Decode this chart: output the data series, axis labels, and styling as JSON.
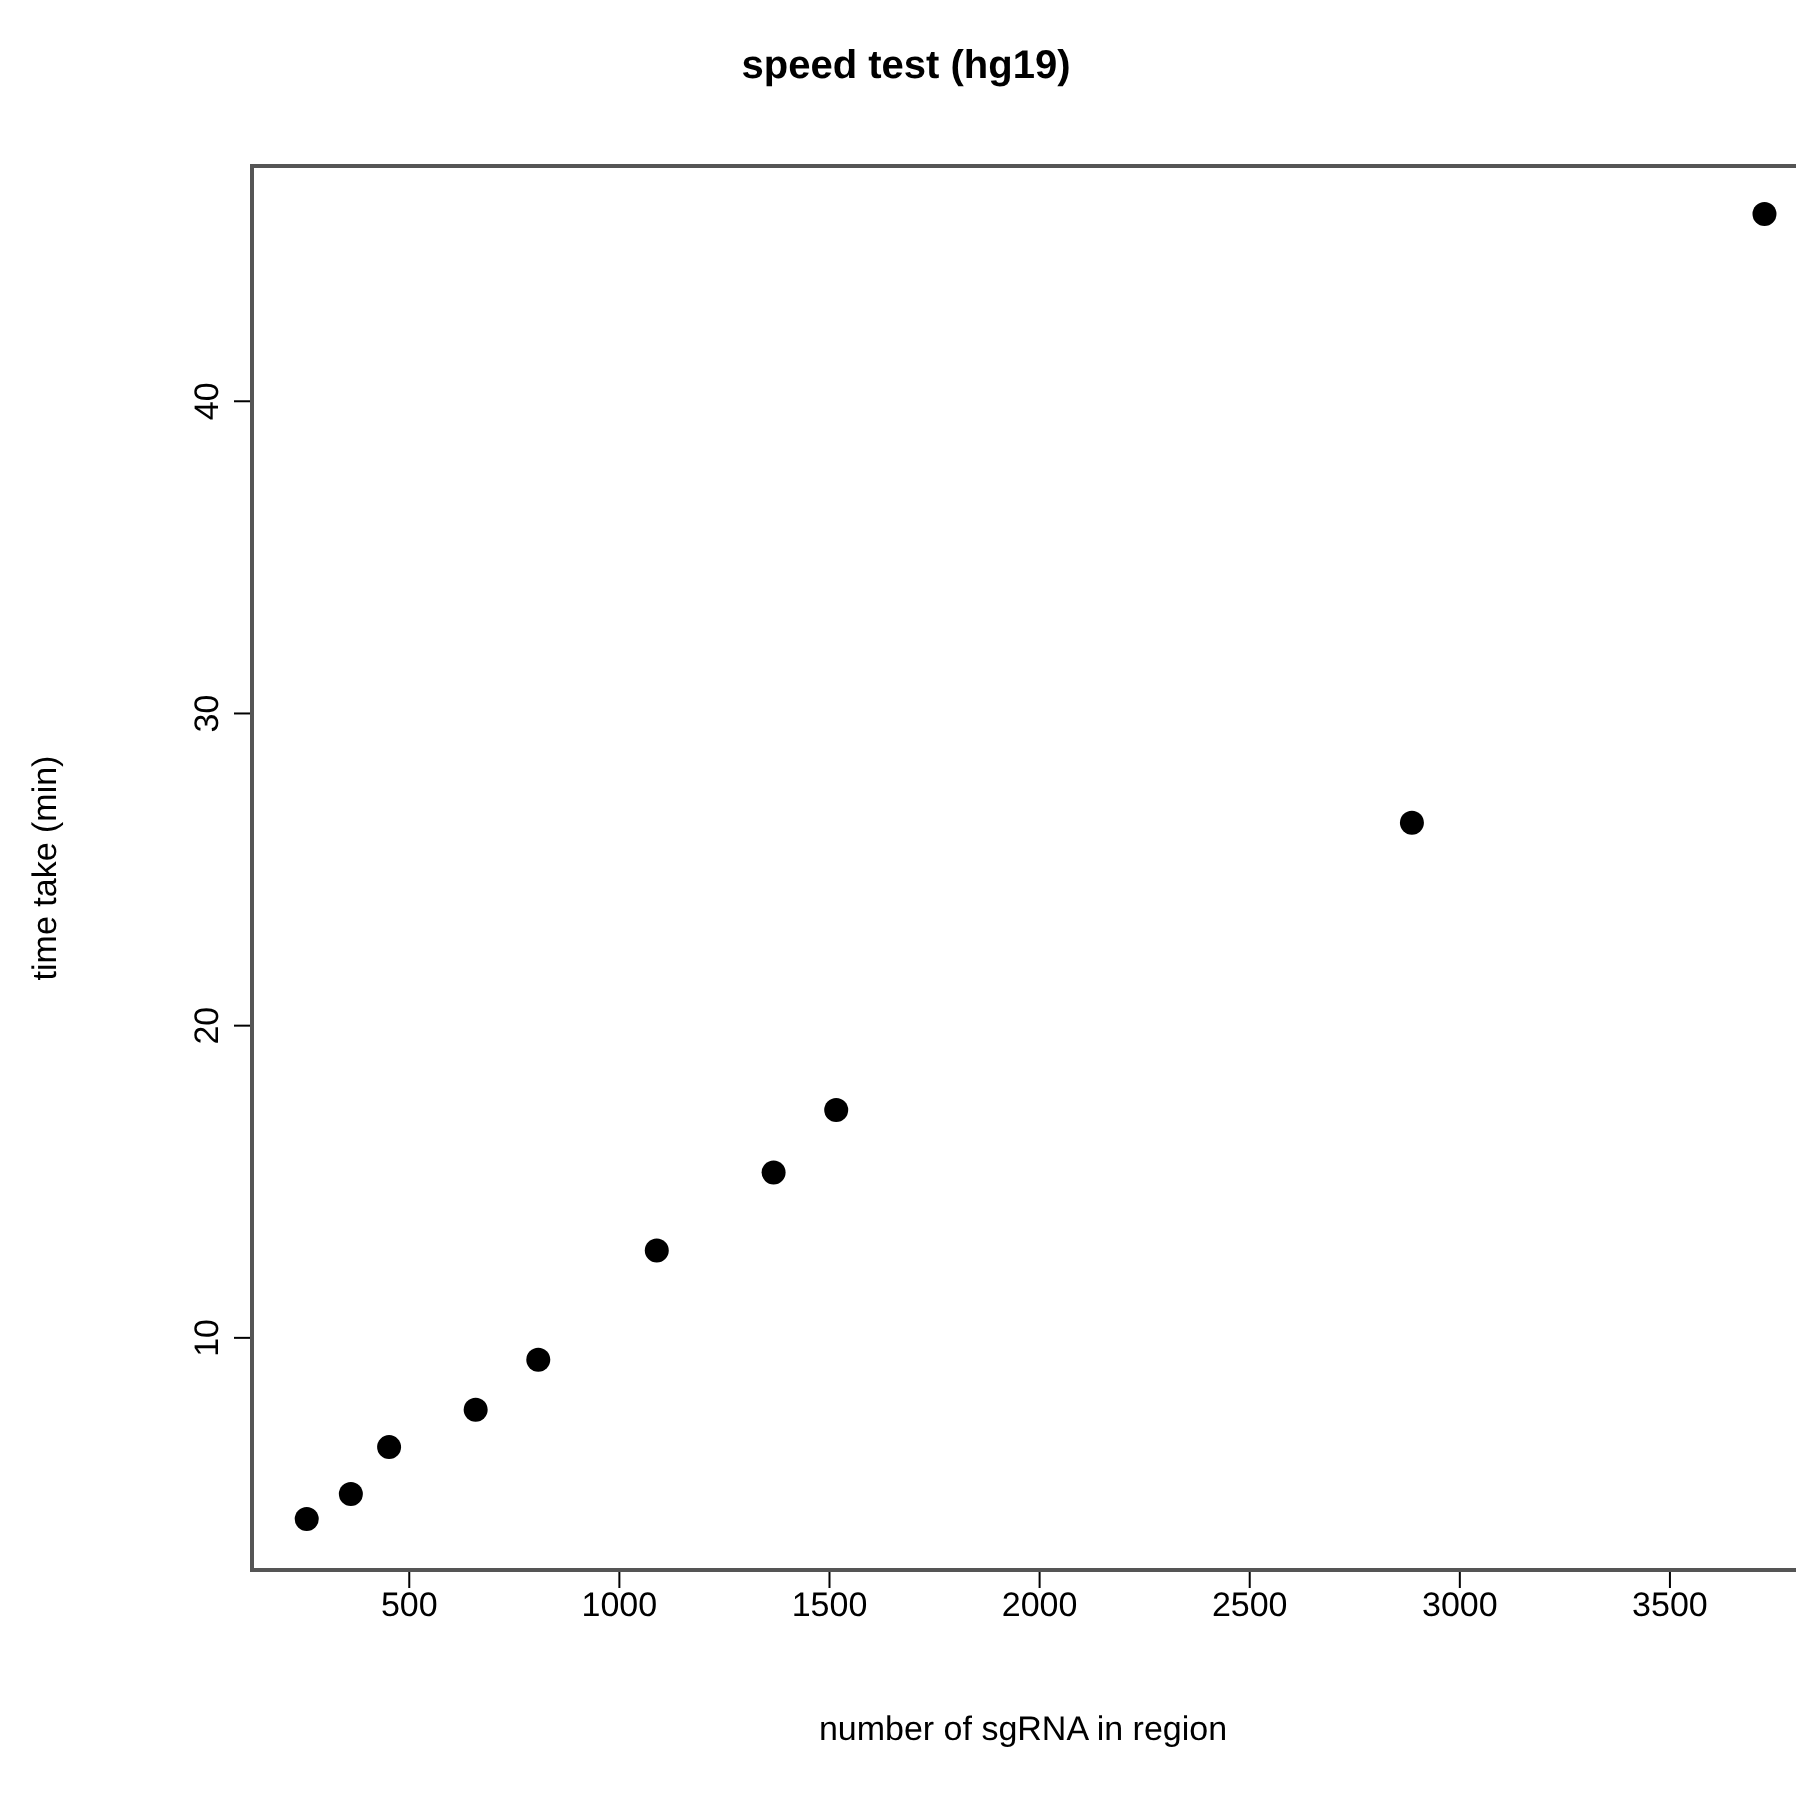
{
  "chart_data": {
    "type": "scatter",
    "title": "speed test (hg19)",
    "xlabel": "number of sgRNA in region",
    "ylabel": "time take (min)",
    "x": [
      256,
      361,
      452,
      658,
      807,
      1089,
      1367,
      1516,
      2886,
      3725
    ],
    "values": [
      4.2,
      5.0,
      6.5,
      7.7,
      9.3,
      12.8,
      15.3,
      17.3,
      26.5,
      46.0
    ],
    "color": "#000000",
    "marker": "circle",
    "grid": false,
    "legend": false,
    "xlim": [
      121,
      3800
    ],
    "xticks": [
      500,
      1000,
      1500,
      2000,
      2500,
      3000,
      3500
    ],
    "ylim": [
      2.5,
      47.6
    ],
    "yticks": [
      10,
      20,
      30,
      40
    ]
  }
}
